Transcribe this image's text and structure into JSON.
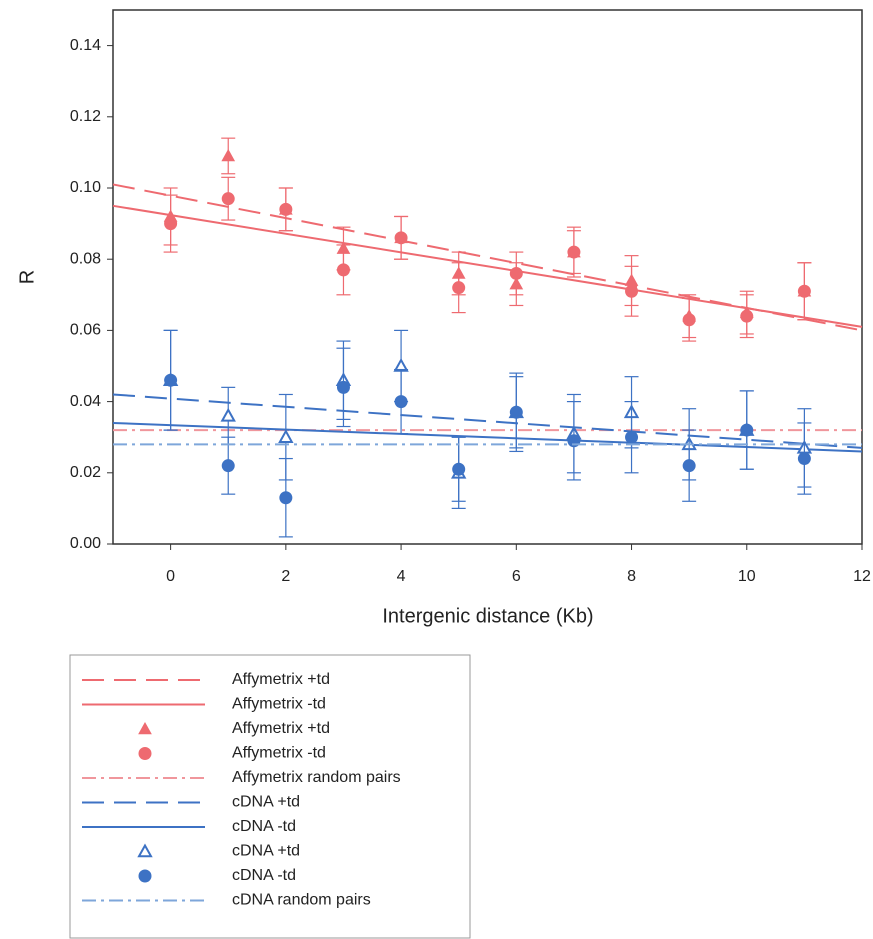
{
  "chart_data": {
    "type": "line",
    "x_label": "Intergenic distance (Kb)",
    "y_label": "R",
    "xlim": [
      -1,
      12
    ],
    "xticks": [
      0,
      2,
      4,
      6,
      8,
      10,
      12
    ],
    "ylim": [
      0,
      0.15
    ],
    "yticks": [
      {
        "value": 0,
        "label": "0.00"
      },
      0.02,
      0.04,
      0.06,
      0.08,
      {
        "value": 0.1,
        "label": "0.10"
      },
      0.12,
      0.14
    ],
    "series": [
      {
        "name": "Affymetrix +td",
        "color": "#ee6a70",
        "kind": "line",
        "line_style": "dashed",
        "x": [
          -1,
          12
        ],
        "values": [
          0.101,
          0.06
        ]
      },
      {
        "name": "Affymetrix -td",
        "color": "#ee6a70",
        "kind": "line",
        "line_style": "solid",
        "x": [
          -1,
          12
        ],
        "values": [
          0.095,
          0.061
        ]
      },
      {
        "name": "Affymetrix +td",
        "color": "#ee6a70",
        "kind": "scatter",
        "marker": "triangle",
        "x": [
          0,
          1,
          2,
          3,
          4,
          5,
          6,
          7,
          8,
          9,
          10,
          11
        ],
        "values": [
          0.092,
          0.109,
          0.094,
          0.083,
          0.086,
          0.076,
          0.073,
          0.082,
          0.074,
          0.064,
          0.065,
          0.071
        ],
        "errors": [
          0.008,
          0.005,
          0.006,
          0.006,
          0.006,
          0.006,
          0.006,
          0.007,
          0.007,
          0.006,
          0.006,
          0.008
        ]
      },
      {
        "name": "Affymetrix -td",
        "color": "#ee6a70",
        "kind": "scatter",
        "marker": "circle",
        "x": [
          0,
          1,
          2,
          3,
          4,
          5,
          6,
          7,
          8,
          9,
          10,
          11
        ],
        "values": [
          0.09,
          0.097,
          0.094,
          0.077,
          0.086,
          0.072,
          0.076,
          0.082,
          0.071,
          0.063,
          0.064,
          0.071
        ],
        "errors": [
          0.008,
          0.006,
          0.006,
          0.007,
          0.006,
          0.007,
          0.006,
          0.006,
          0.007,
          0.006,
          0.006,
          0.008
        ]
      },
      {
        "name": "Affymetrix random pairs",
        "color": "#f0969c",
        "kind": "line",
        "line_style": "dashdot",
        "x": [
          -1,
          12
        ],
        "values": [
          0.032,
          0.032
        ]
      },
      {
        "name": "cDNA +td",
        "color": "#3d72c4",
        "kind": "line",
        "line_style": "dashed",
        "x": [
          -1,
          12
        ],
        "values": [
          0.042,
          0.027
        ]
      },
      {
        "name": "cDNA -td",
        "color": "#3d72c4",
        "kind": "line",
        "line_style": "solid",
        "x": [
          -1,
          12
        ],
        "values": [
          0.034,
          0.026
        ]
      },
      {
        "name": "cDNA +td",
        "color": "#3d72c4",
        "kind": "scatter",
        "marker": "triangle",
        "x": [
          0,
          1,
          2,
          3,
          4,
          5,
          6,
          7,
          8,
          9,
          10,
          11
        ],
        "values": [
          0.046,
          0.036,
          0.03,
          0.046,
          0.05,
          0.02,
          0.037,
          0.031,
          0.037,
          0.028,
          0.032,
          0.027
        ],
        "errors": [
          0.014,
          0.008,
          0.012,
          0.011,
          0.01,
          0.01,
          0.011,
          0.011,
          0.01,
          0.01,
          0.011,
          0.011
        ]
      },
      {
        "name": "cDNA -td",
        "color": "#3d72c4",
        "kind": "scatter",
        "marker": "circle",
        "x": [
          0,
          1,
          2,
          3,
          4,
          5,
          6,
          7,
          8,
          9,
          10,
          11
        ],
        "values": [
          0.046,
          0.022,
          0.013,
          0.044,
          0.04,
          0.021,
          0.037,
          0.029,
          0.03,
          0.022,
          0.032,
          0.024
        ],
        "errors": [
          0.014,
          0.008,
          0.011,
          0.011,
          0.009,
          0.009,
          0.01,
          0.011,
          0.01,
          0.01,
          0.011,
          0.01
        ]
      },
      {
        "name": "cDNA random pairs",
        "color": "#7ea6da",
        "kind": "line",
        "line_style": "dashdot",
        "x": [
          -1,
          12
        ],
        "values": [
          0.028,
          0.028
        ]
      }
    ]
  }
}
